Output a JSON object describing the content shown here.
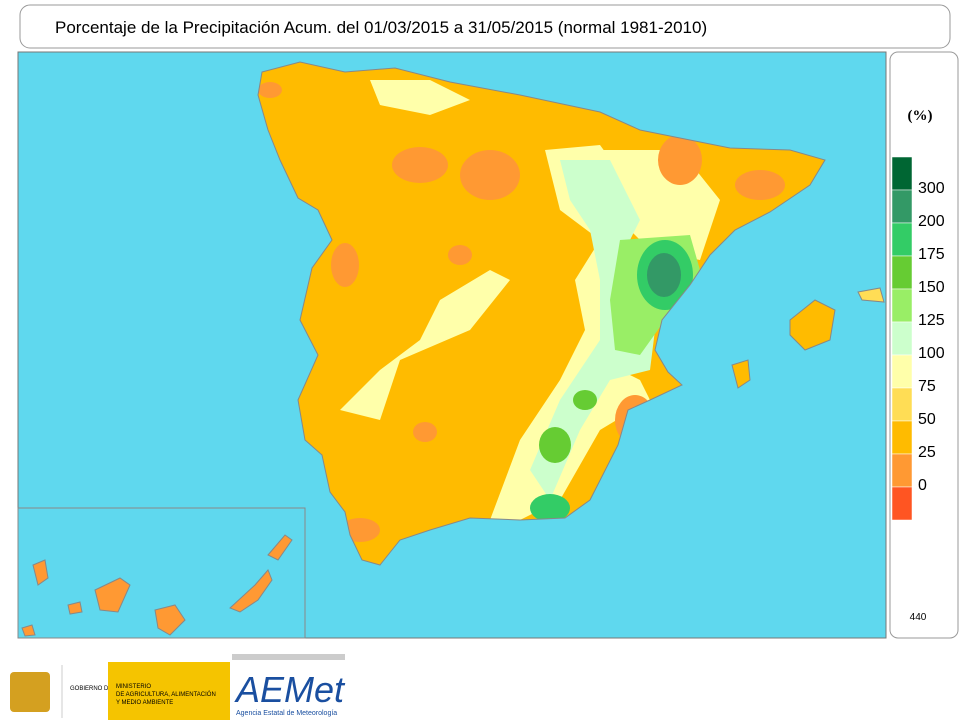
{
  "header": {
    "title": "Porcentaje de la Precipitación Acum. del 01/03/2015 a 31/05/2015  (normal 1981-2010)"
  },
  "legend": {
    "unit": "(%)",
    "colors": [
      "#006633",
      "#339966",
      "#33cc66",
      "#66cc33",
      "#99ee66",
      "#ccffcc",
      "#ffffaa",
      "#ffdd55",
      "#ffbb00",
      "#ff9933",
      "#ff5522"
    ],
    "labels": [
      "300",
      "200",
      "175",
      "150",
      "125",
      "100",
      "75",
      "50",
      "25",
      "0"
    ],
    "note": "440"
  },
  "footer": {
    "government": "GOBIERNO DE ESPAÑA",
    "ministry": [
      "MINISTERIO",
      "DE AGRICULTURA, ALIMENTACIÓN",
      "Y MEDIO AMBIENTE"
    ],
    "agency_logo": "AEMet",
    "agency_name": "Agencia Estatal de Meteorología"
  }
}
